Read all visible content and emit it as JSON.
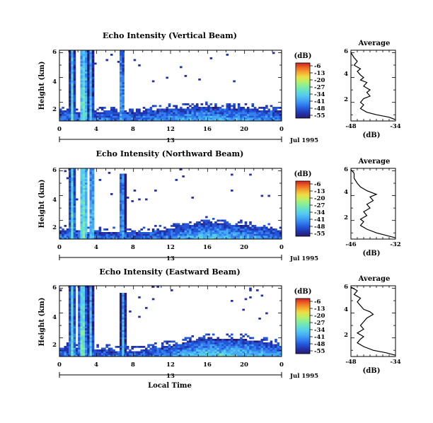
{
  "figure": {
    "x_axis_title": "Local Time",
    "colormap": [
      "#2a1a6e",
      "#2233aa",
      "#2255d8",
      "#3380ee",
      "#44aaf5",
      "#55ccee",
      "#66e0c8",
      "#88ee99",
      "#bbf066",
      "#eedd44",
      "#f5a630",
      "#ee6622",
      "#cc2222"
    ]
  },
  "panels": [
    {
      "title": "Echo Intensity (Vertical Beam)",
      "ylabel": "Height (km)",
      "y_ticks": [
        "2",
        "4",
        "6"
      ],
      "x_ticks": [
        "0",
        "4",
        "8",
        "12",
        "16",
        "20",
        "0"
      ],
      "date_day": "13",
      "date_label": "Jul 1995",
      "colorbar_label": "(dB)",
      "colorbar_ticks": [
        "-6",
        "-13",
        "-20",
        "-27",
        "-34",
        "-41",
        "-48",
        "-55"
      ],
      "profile_title": "Average",
      "profile_y_ticks": [
        "2",
        "4",
        "6"
      ],
      "profile_x_ticks": [
        "-48",
        "-34"
      ],
      "profile_xlabel": "(dB)"
    },
    {
      "title": "Echo Intensity (Northward Beam)",
      "ylabel": "Height (km)",
      "y_ticks": [
        "2",
        "4",
        "6"
      ],
      "x_ticks": [
        "0",
        "4",
        "8",
        "12",
        "16",
        "20",
        "0"
      ],
      "date_day": "13",
      "date_label": "Jul 1995",
      "colorbar_label": "(dB)",
      "colorbar_ticks": [
        "-6",
        "-13",
        "-20",
        "-27",
        "-34",
        "-41",
        "-48",
        "-55"
      ],
      "profile_title": "Average",
      "profile_y_ticks": [
        "2",
        "4",
        "6"
      ],
      "profile_x_ticks": [
        "-46",
        "-32"
      ],
      "profile_xlabel": "(dB)"
    },
    {
      "title": "Echo Intensity (Eastward Beam)",
      "ylabel": "Height (km)",
      "y_ticks": [
        "2",
        "4",
        "6"
      ],
      "x_ticks": [
        "0",
        "4",
        "8",
        "12",
        "16",
        "20",
        "0"
      ],
      "date_day": "13",
      "date_label": "Jul 1995",
      "colorbar_label": "(dB)",
      "colorbar_ticks": [
        "-6",
        "-13",
        "-20",
        "-27",
        "-34",
        "-41",
        "-48",
        "-55"
      ],
      "profile_title": "Average",
      "profile_y_ticks": [
        "2",
        "4",
        "6"
      ],
      "profile_x_ticks": [
        "-48",
        "-34"
      ],
      "profile_xlabel": "(dB)"
    }
  ],
  "chart_data": [
    {
      "type": "heatmap",
      "title": "Echo Intensity (Vertical Beam)",
      "xlabel": "Local Time",
      "ylabel": "Height (km)",
      "xlim": [
        0,
        24
      ],
      "ylim": [
        0.5,
        6.2
      ],
      "color_range_db": [
        -55,
        -6
      ],
      "echo_columns": [
        {
          "center": 1.4,
          "width": 0.35,
          "top": 6.2,
          "value": -30
        },
        {
          "center": 2.6,
          "width": 0.55,
          "top": 6.2,
          "value": -27
        },
        {
          "center": 3.4,
          "width": 0.35,
          "top": 6.2,
          "value": -32
        },
        {
          "center": 6.7,
          "width": 0.35,
          "top": 6.2,
          "value": -35
        }
      ],
      "boundary_layer": [
        {
          "x": 0,
          "top": 1.3
        },
        {
          "x": 4,
          "top": 1.2
        },
        {
          "x": 8,
          "top": 1.2
        },
        {
          "x": 12,
          "top": 1.5
        },
        {
          "x": 16,
          "top": 1.6
        },
        {
          "x": 20,
          "top": 1.5
        },
        {
          "x": 24,
          "top": 1.3
        }
      ]
    },
    {
      "type": "line",
      "title": "Average",
      "xlabel": "(dB)",
      "xlim": [
        -48,
        -34
      ],
      "ylim": [
        0.5,
        6.2
      ],
      "points": [
        [
          -34,
          0.6
        ],
        [
          -36,
          0.8
        ],
        [
          -40,
          1.0
        ],
        [
          -43,
          1.2
        ],
        [
          -45,
          1.5
        ],
        [
          -44,
          1.8
        ],
        [
          -45,
          2.0
        ],
        [
          -44,
          2.3
        ],
        [
          -42,
          2.5
        ],
        [
          -43,
          2.8
        ],
        [
          -42,
          3.0
        ],
        [
          -44,
          3.3
        ],
        [
          -43,
          3.6
        ],
        [
          -45,
          3.8
        ],
        [
          -44,
          4.0
        ],
        [
          -45,
          4.2
        ],
        [
          -46,
          4.5
        ],
        [
          -45,
          4.7
        ],
        [
          -47,
          5.0
        ],
        [
          -46,
          5.3
        ],
        [
          -47,
          5.6
        ],
        [
          -48,
          6.0
        ]
      ]
    },
    {
      "type": "heatmap",
      "title": "Echo Intensity (Northward Beam)",
      "xlabel": "Local Time",
      "ylabel": "Height (km)",
      "xlim": [
        0,
        24
      ],
      "ylim": [
        0.5,
        6.2
      ],
      "color_range_db": [
        -55,
        -6
      ],
      "echo_columns": [
        {
          "center": 1.4,
          "width": 0.4,
          "top": 6.2,
          "value": -28
        },
        {
          "center": 2.6,
          "width": 0.6,
          "top": 6.2,
          "value": -26
        },
        {
          "center": 3.5,
          "width": 0.35,
          "top": 6.2,
          "value": -32
        },
        {
          "center": 6.8,
          "width": 0.4,
          "top": 5.8,
          "value": -35
        }
      ],
      "boundary_layer": [
        {
          "x": 0,
          "top": 1.2
        },
        {
          "x": 4,
          "top": 1.1
        },
        {
          "x": 8,
          "top": 1.0
        },
        {
          "x": 12,
          "top": 1.3
        },
        {
          "x": 16,
          "top": 1.9
        },
        {
          "x": 20,
          "top": 1.6
        },
        {
          "x": 24,
          "top": 1.2
        }
      ]
    },
    {
      "type": "line",
      "title": "Average",
      "xlabel": "(dB)",
      "xlim": [
        -46,
        -32
      ],
      "ylim": [
        0.5,
        6.2
      ],
      "points": [
        [
          -32,
          0.6
        ],
        [
          -35,
          0.8
        ],
        [
          -38,
          1.0
        ],
        [
          -41,
          1.3
        ],
        [
          -43,
          1.6
        ],
        [
          -42,
          1.9
        ],
        [
          -43,
          2.1
        ],
        [
          -41,
          2.4
        ],
        [
          -42,
          2.7
        ],
        [
          -40,
          3.0
        ],
        [
          -41,
          3.3
        ],
        [
          -39,
          3.6
        ],
        [
          -40,
          3.9
        ],
        [
          -38,
          4.1
        ],
        [
          -41,
          4.4
        ],
        [
          -43,
          4.7
        ],
        [
          -44,
          5.0
        ],
        [
          -45,
          5.4
        ],
        [
          -45,
          5.8
        ],
        [
          -46,
          6.1
        ]
      ]
    },
    {
      "type": "heatmap",
      "title": "Echo Intensity (Eastward Beam)",
      "xlabel": "Local Time",
      "ylabel": "Height (km)",
      "xlim": [
        0,
        24
      ],
      "ylim": [
        0.5,
        6.2
      ],
      "color_range_db": [
        -55,
        -6
      ],
      "echo_columns": [
        {
          "center": 1.4,
          "width": 0.4,
          "top": 6.2,
          "value": -27
        },
        {
          "center": 2.5,
          "width": 0.6,
          "top": 6.2,
          "value": -25
        },
        {
          "center": 3.4,
          "width": 0.35,
          "top": 6.2,
          "value": -32
        },
        {
          "center": 6.9,
          "width": 0.4,
          "top": 5.6,
          "value": -35
        }
      ],
      "boundary_layer": [
        {
          "x": 0,
          "top": 1.2
        },
        {
          "x": 4,
          "top": 1.1
        },
        {
          "x": 8,
          "top": 0.9
        },
        {
          "x": 12,
          "top": 1.4
        },
        {
          "x": 16,
          "top": 2.0
        },
        {
          "x": 20,
          "top": 1.9
        },
        {
          "x": 24,
          "top": 1.4
        }
      ]
    },
    {
      "type": "line",
      "title": "Average",
      "xlabel": "(dB)",
      "xlim": [
        -48,
        -34
      ],
      "ylim": [
        0.5,
        6.2
      ],
      "points": [
        [
          -34,
          0.6
        ],
        [
          -37,
          0.8
        ],
        [
          -41,
          1.0
        ],
        [
          -44,
          1.3
        ],
        [
          -46,
          1.6
        ],
        [
          -45,
          1.9
        ],
        [
          -44,
          2.1
        ],
        [
          -46,
          2.4
        ],
        [
          -44,
          2.7
        ],
        [
          -45,
          3.0
        ],
        [
          -44,
          3.3
        ],
        [
          -43,
          3.6
        ],
        [
          -41,
          3.9
        ],
        [
          -42,
          4.1
        ],
        [
          -44,
          4.3
        ],
        [
          -45,
          4.6
        ],
        [
          -46,
          4.9
        ],
        [
          -45,
          5.2
        ],
        [
          -47,
          5.5
        ],
        [
          -46,
          5.8
        ],
        [
          -48,
          6.1
        ]
      ]
    }
  ]
}
